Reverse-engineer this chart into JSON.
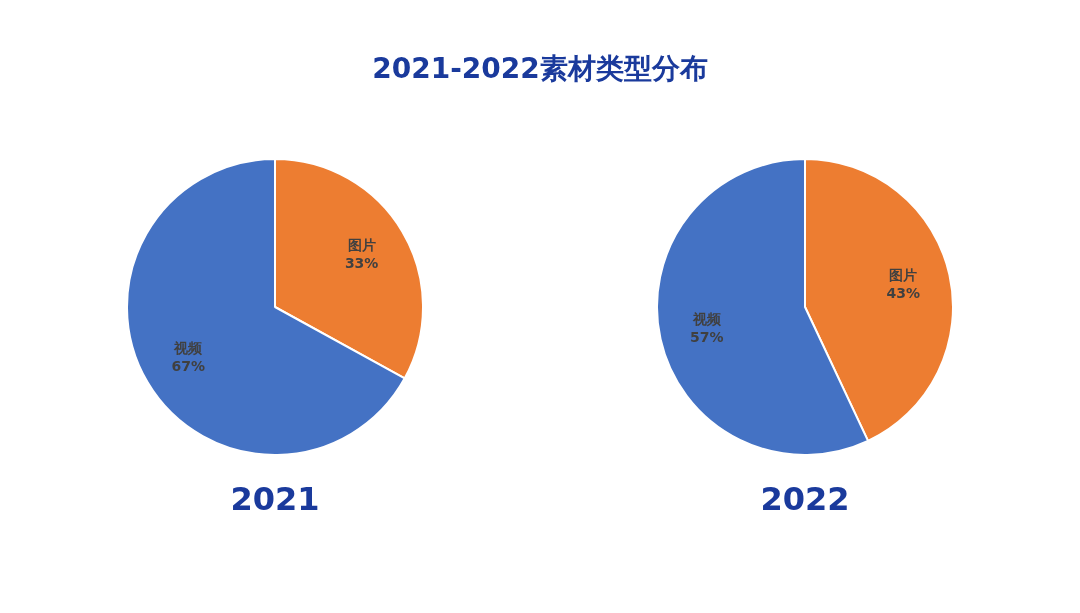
{
  "chart_data": [
    {
      "type": "pie",
      "title": "2021-2022素材类型分布",
      "xlabel": "2021",
      "categories": [
        "图片",
        "视频"
      ],
      "values": [
        33,
        67
      ],
      "colors": [
        "#ed7d31",
        "#4472c4"
      ],
      "value_labels": [
        "33%",
        "67%"
      ],
      "legend": false
    },
    {
      "type": "pie",
      "xlabel": "2022",
      "categories": [
        "图片",
        "视频"
      ],
      "values": [
        43,
        57
      ],
      "colors": [
        "#ed7d31",
        "#4472c4"
      ],
      "value_labels": [
        "43%",
        "57%"
      ],
      "legend": false
    }
  ]
}
